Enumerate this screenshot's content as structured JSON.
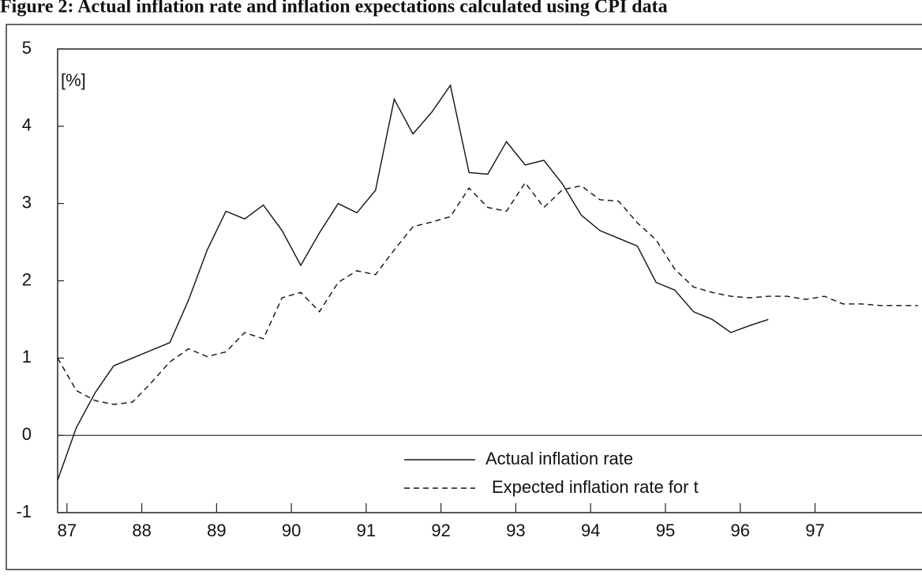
{
  "chart_data": {
    "type": "line",
    "title": "Figure 2: Actual inflation rate and inflation expectations calculated using CPI data",
    "annotation": "[%]",
    "x": [
      86.875,
      87.125,
      87.375,
      87.625,
      87.875,
      88.125,
      88.375,
      88.625,
      88.875,
      89.125,
      89.375,
      89.625,
      89.875,
      90.125,
      90.375,
      90.625,
      90.875,
      91.125,
      91.375,
      91.625,
      91.875,
      92.125,
      92.375,
      92.625,
      92.875,
      93.125,
      93.375,
      93.625,
      93.875,
      94.125,
      94.375,
      94.625,
      94.875,
      95.125,
      95.375,
      95.625,
      95.875,
      96.125,
      96.375,
      96.625,
      96.875,
      97.125,
      97.375,
      97.625,
      97.875,
      98.125,
      98.375
    ],
    "series": [
      {
        "name": "Actual inflation rate",
        "color": "#111111",
        "dash": false,
        "values": [
          -0.58,
          0.1,
          0.55,
          0.9,
          1.0,
          1.1,
          1.2,
          1.75,
          2.4,
          2.9,
          2.8,
          2.98,
          2.65,
          2.2,
          2.62,
          3.0,
          2.88,
          3.17,
          4.35,
          3.9,
          4.18,
          4.53,
          3.4,
          3.38,
          3.8,
          3.5,
          3.56,
          3.25,
          2.85,
          2.65,
          2.55,
          2.45,
          1.98,
          1.88,
          1.6,
          1.5,
          1.33,
          1.42,
          1.5,
          null,
          null,
          null,
          null,
          null,
          null,
          null,
          null
        ]
      },
      {
        "name": "Expected inflation rate for t",
        "color": "#111111",
        "dash": true,
        "values": [
          1.0,
          0.58,
          0.45,
          0.4,
          0.43,
          0.68,
          0.95,
          1.12,
          1.02,
          1.08,
          1.33,
          1.25,
          1.78,
          1.85,
          1.6,
          1.98,
          2.13,
          2.08,
          2.4,
          2.7,
          2.76,
          2.83,
          3.2,
          2.95,
          2.9,
          3.27,
          2.95,
          3.18,
          3.23,
          3.05,
          3.03,
          2.75,
          2.53,
          2.15,
          1.92,
          1.85,
          1.8,
          1.78,
          1.8,
          1.8,
          1.76,
          1.8,
          1.7,
          1.7,
          1.68,
          1.68,
          1.68
        ]
      }
    ],
    "xlim": [
      86.875,
      98.43
    ],
    "xticks": [
      87,
      88,
      89,
      90,
      91,
      92,
      93,
      94,
      95,
      96,
      97
    ],
    "ylim": [
      -1,
      5
    ],
    "yticks": [
      -1,
      0,
      1,
      2,
      3,
      4,
      5
    ]
  }
}
